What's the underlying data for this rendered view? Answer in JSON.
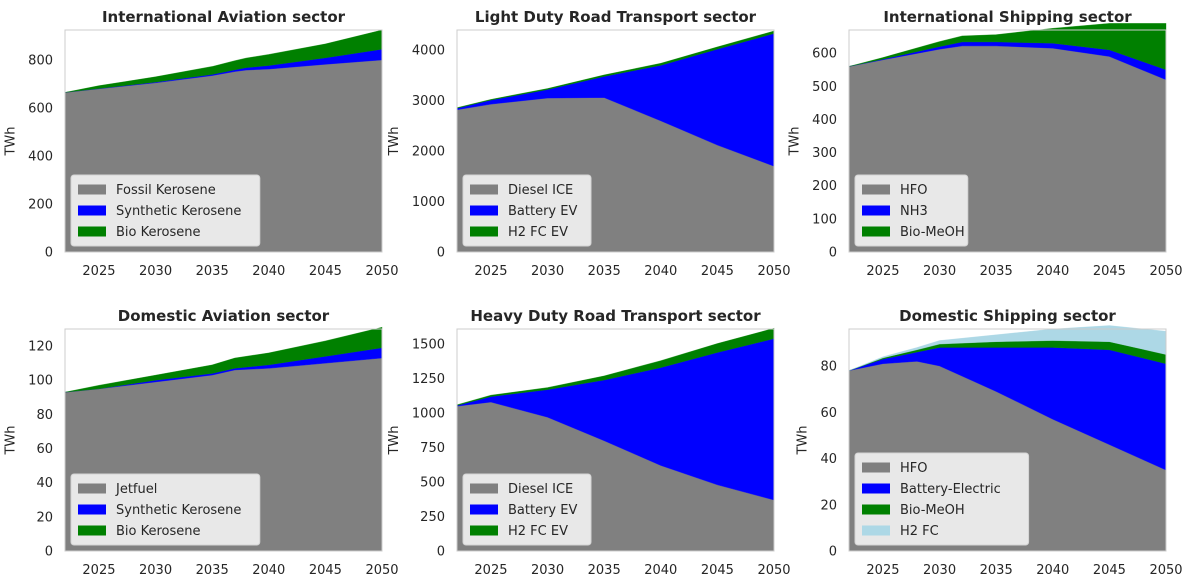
{
  "chart_data": [
    {
      "type": "area",
      "stacked": true,
      "title": "International Aviation sector",
      "xlabel": "",
      "ylabel": "TWh",
      "x": [
        2022,
        2025,
        2030,
        2035,
        2037,
        2038,
        2040,
        2045,
        2050
      ],
      "xlim": [
        2022,
        2050
      ],
      "ylim": [
        0,
        925
      ],
      "xticks": [
        2025,
        2030,
        2035,
        2040,
        2045,
        2050
      ],
      "yticks": [
        0,
        200,
        400,
        600,
        800
      ],
      "legend": "lower-left",
      "grid": false,
      "series": [
        {
          "name": "Fossil Kerosene",
          "color": "#808080",
          "values": [
            665,
            680,
            705,
            735,
            752,
            758,
            762,
            782,
            800
          ]
        },
        {
          "name": "Synthetic Kerosene",
          "color": "#0000ff",
          "values": [
            0,
            1,
            3,
            5,
            7,
            10,
            15,
            27,
            45
          ]
        },
        {
          "name": "Bio Kerosene",
          "color": "#008000",
          "values": [
            0,
            12,
            22,
            33,
            38,
            40,
            46,
            58,
            80
          ]
        }
      ]
    },
    {
      "type": "area",
      "stacked": true,
      "title": "Light Duty Road Transport sector",
      "xlabel": "",
      "ylabel": "TWh",
      "x": [
        2022,
        2025,
        2030,
        2035,
        2040,
        2045,
        2050
      ],
      "xlim": [
        2022,
        2050
      ],
      "ylim": [
        0,
        4400
      ],
      "xticks": [
        2025,
        2030,
        2035,
        2040,
        2045,
        2050
      ],
      "yticks": [
        0,
        1000,
        2000,
        3000,
        4000
      ],
      "legend": "lower-left",
      "grid": false,
      "series": [
        {
          "name": "Diesel ICE",
          "color": "#808080",
          "values": [
            2820,
            2930,
            3050,
            3060,
            2600,
            2120,
            1700
          ]
        },
        {
          "name": "Battery EV",
          "color": "#0000ff",
          "values": [
            30,
            80,
            170,
            420,
            1100,
            1900,
            2630
          ]
        },
        {
          "name": "H2 FC EV",
          "color": "#008000",
          "values": [
            10,
            15,
            20,
            30,
            40,
            45,
            50
          ]
        }
      ]
    },
    {
      "type": "area",
      "stacked": true,
      "title": "International Shipping sector",
      "xlabel": "",
      "ylabel": "TWh",
      "x": [
        2022,
        2025,
        2030,
        2032,
        2035,
        2040,
        2045,
        2050
      ],
      "xlim": [
        2022,
        2050
      ],
      "ylim": [
        0,
        670
      ],
      "xticks": [
        2025,
        2030,
        2035,
        2040,
        2045,
        2050
      ],
      "yticks": [
        0,
        100,
        200,
        300,
        400,
        500,
        600
      ],
      "legend": "lower-left",
      "grid": false,
      "series": [
        {
          "name": "HFO",
          "color": "#808080",
          "values": [
            560,
            580,
            612,
            622,
            622,
            615,
            590,
            520
          ]
        },
        {
          "name": "NH3",
          "color": "#0000ff",
          "values": [
            0,
            2,
            8,
            12,
            12,
            15,
            20,
            30
          ]
        },
        {
          "name": "Bio-MeOH",
          "color": "#008000",
          "values": [
            0,
            5,
            15,
            18,
            22,
            45,
            80,
            140
          ]
        }
      ]
    },
    {
      "type": "area",
      "stacked": true,
      "title": "Domestic Aviation sector",
      "xlabel": "",
      "ylabel": "TWh",
      "x": [
        2022,
        2025,
        2030,
        2035,
        2037,
        2040,
        2045,
        2050
      ],
      "xlim": [
        2022,
        2050
      ],
      "ylim": [
        0,
        130
      ],
      "xticks": [
        2025,
        2030,
        2035,
        2040,
        2045,
        2050
      ],
      "yticks": [
        0,
        20,
        40,
        60,
        80,
        100,
        120
      ],
      "legend": "lower-left",
      "grid": false,
      "series": [
        {
          "name": "Jetfuel",
          "color": "#808080",
          "values": [
            93,
            95,
            99,
            103,
            106,
            107,
            110,
            113
          ]
        },
        {
          "name": "Synthetic Kerosene",
          "color": "#0000ff",
          "values": [
            0,
            0,
            1,
            1,
            1,
            2,
            4,
            6
          ]
        },
        {
          "name": "Bio Kerosene",
          "color": "#008000",
          "values": [
            0,
            2,
            3,
            5,
            6,
            7,
            9,
            12
          ]
        }
      ]
    },
    {
      "type": "area",
      "stacked": true,
      "title": "Heavy Duty Road Transport sector",
      "xlabel": "",
      "ylabel": "TWh",
      "x": [
        2022,
        2025,
        2030,
        2035,
        2040,
        2045,
        2050
      ],
      "xlim": [
        2022,
        2050
      ],
      "ylim": [
        0,
        1610
      ],
      "xticks": [
        2025,
        2030,
        2035,
        2040,
        2045,
        2050
      ],
      "yticks": [
        0,
        250,
        500,
        750,
        1000,
        1250,
        1500
      ],
      "legend": "lower-left",
      "grid": false,
      "series": [
        {
          "name": "Diesel ICE",
          "color": "#808080",
          "values": [
            1050,
            1080,
            970,
            800,
            620,
            480,
            370
          ]
        },
        {
          "name": "Battery EV",
          "color": "#0000ff",
          "values": [
            5,
            40,
            200,
            440,
            710,
            960,
            1170
          ]
        },
        {
          "name": "H2 FC EV",
          "color": "#008000",
          "values": [
            5,
            10,
            15,
            30,
            50,
            65,
            75
          ]
        }
      ]
    },
    {
      "type": "area",
      "stacked": true,
      "title": "Domestic Shipping sector",
      "xlabel": "",
      "ylabel": "TWh",
      "x": [
        2022,
        2025,
        2028,
        2030,
        2035,
        2040,
        2045,
        2050
      ],
      "xlim": [
        2022,
        2050
      ],
      "ylim": [
        0,
        96
      ],
      "xticks": [
        2025,
        2030,
        2035,
        2040,
        2045,
        2050
      ],
      "yticks": [
        0,
        20,
        40,
        60,
        80
      ],
      "legend": "lower-left",
      "grid": false,
      "series": [
        {
          "name": "HFO",
          "color": "#808080",
          "values": [
            78,
            81,
            82,
            80,
            69,
            57,
            46,
            35
          ]
        },
        {
          "name": "Battery-Electric",
          "color": "#0000ff",
          "values": [
            0,
            2,
            4,
            8,
            19,
            31,
            41,
            46
          ]
        },
        {
          "name": "Bio-MeOH",
          "color": "#008000",
          "values": [
            0,
            0.5,
            1,
            1.5,
            2.5,
            3,
            3.5,
            4
          ]
        },
        {
          "name": "H2 FC",
          "color": "#add8e6",
          "values": [
            0,
            0.5,
            1,
            1.5,
            3,
            5,
            7,
            10
          ]
        }
      ]
    }
  ]
}
